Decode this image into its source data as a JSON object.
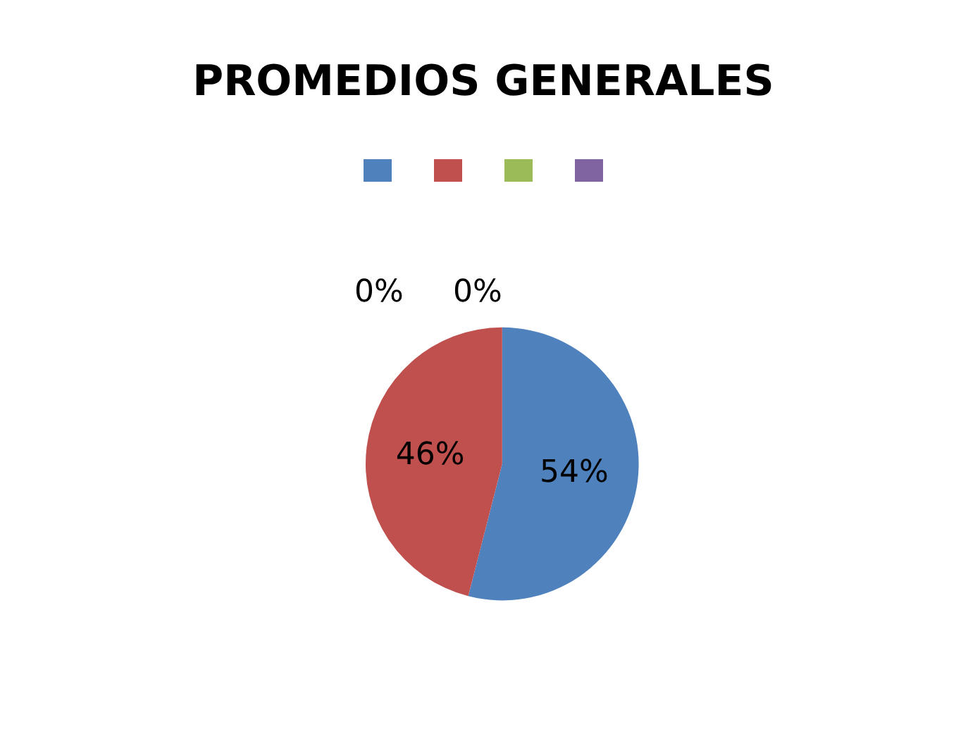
{
  "chart_data": {
    "type": "pie",
    "title": "PROMEDIOS GENERALES",
    "categories": [
      null,
      null,
      null,
      null
    ],
    "values": [
      54,
      46,
      0,
      0
    ],
    "colors": [
      "#4f81bd",
      "#c0504d",
      "#9bbb59",
      "#8064a2"
    ],
    "value_labels": [
      "54%",
      "46%",
      "0%",
      "0%"
    ]
  }
}
